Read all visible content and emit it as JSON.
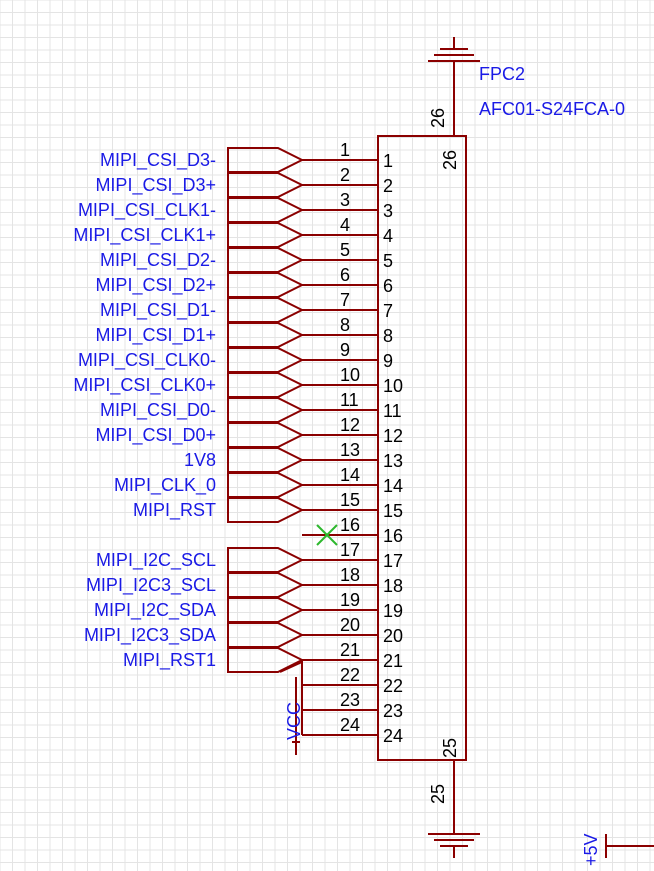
{
  "component": {
    "designator": "FPC2",
    "part_number": "AFC01-S24FCA-0",
    "top_pin": "26",
    "bottom_pin": "25"
  },
  "rows": [
    {
      "pin": "1",
      "net": "MIPI_CSI_D3-"
    },
    {
      "pin": "2",
      "net": "MIPI_CSI_D3+"
    },
    {
      "pin": "3",
      "net": "MIPI_CSI_CLK1-"
    },
    {
      "pin": "4",
      "net": "MIPI_CSI_CLK1+"
    },
    {
      "pin": "5",
      "net": "MIPI_CSI_D2-"
    },
    {
      "pin": "6",
      "net": "MIPI_CSI_D2+"
    },
    {
      "pin": "7",
      "net": "MIPI_CSI_D1-"
    },
    {
      "pin": "8",
      "net": "MIPI_CSI_D1+"
    },
    {
      "pin": "9",
      "net": "MIPI_CSI_CLK0-"
    },
    {
      "pin": "10",
      "net": "MIPI_CSI_CLK0+"
    },
    {
      "pin": "11",
      "net": "MIPI_CSI_D0-"
    },
    {
      "pin": "12",
      "net": "MIPI_CSI_D0+"
    },
    {
      "pin": "13",
      "net": "1V8"
    },
    {
      "pin": "14",
      "net": "MIPI_CLK_0"
    },
    {
      "pin": "15",
      "net": "MIPI_RST"
    },
    {
      "pin": "16",
      "net": ""
    },
    {
      "pin": "17",
      "net": "MIPI_I2C_SCL"
    },
    {
      "pin": "18",
      "net": "MIPI_I2C3_SCL"
    },
    {
      "pin": "19",
      "net": "MIPI_I2C_SDA"
    },
    {
      "pin": "20",
      "net": "MIPI_I2C3_SDA"
    },
    {
      "pin": "21",
      "net": "MIPI_RST1"
    },
    {
      "pin": "22",
      "net": ""
    },
    {
      "pin": "23",
      "net": ""
    },
    {
      "pin": "24",
      "net": ""
    }
  ],
  "no_connect_pin": "16",
  "power": {
    "vcc": "VCC",
    "p5v": "+5V"
  },
  "colors": {
    "wire": "#8b0000",
    "text_black": "#000000",
    "net_label": "#1a1ae6",
    "no_connect": "#2eb82e",
    "grid": "#e4e4e4",
    "background": "#ffffff"
  }
}
